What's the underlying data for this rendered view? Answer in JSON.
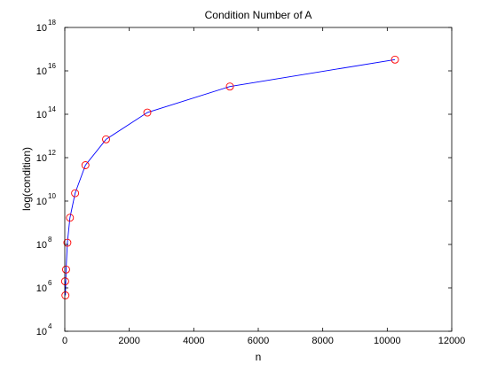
{
  "chart_data": {
    "type": "line",
    "title": "Condition Number of A",
    "xlabel": "n",
    "ylabel": "log(condition)",
    "xlim": [
      0,
      12000
    ],
    "ylim": [
      10000,
      1e+18
    ],
    "yscale": "log",
    "grid": false,
    "x_ticks": [
      "0",
      "2000",
      "4000",
      "6000",
      "8000",
      "10000",
      "12000"
    ],
    "y_ticks": [
      {
        "base": "10",
        "exp": "4"
      },
      {
        "base": "10",
        "exp": "6"
      },
      {
        "base": "10",
        "exp": "8"
      },
      {
        "base": "10",
        "exp": "10"
      },
      {
        "base": "10",
        "exp": "12"
      },
      {
        "base": "10",
        "exp": "14"
      },
      {
        "base": "10",
        "exp": "16"
      },
      {
        "base": "10",
        "exp": "18"
      }
    ],
    "series": [
      {
        "line_color": "#0000ff",
        "marker_color": "#ff0000",
        "marker": "circle",
        "x": [
          10,
          20,
          40,
          80,
          160,
          320,
          640,
          1280,
          2560,
          5120,
          10240
        ],
        "y": [
          2000000.0,
          450000.0,
          7000000.0,
          120000000.0,
          1700000000.0,
          23000000000.0,
          450000000000.0,
          7000000000000.0,
          120000000000000.0,
          1900000000000000.0,
          3.3e+16
        ]
      }
    ]
  }
}
